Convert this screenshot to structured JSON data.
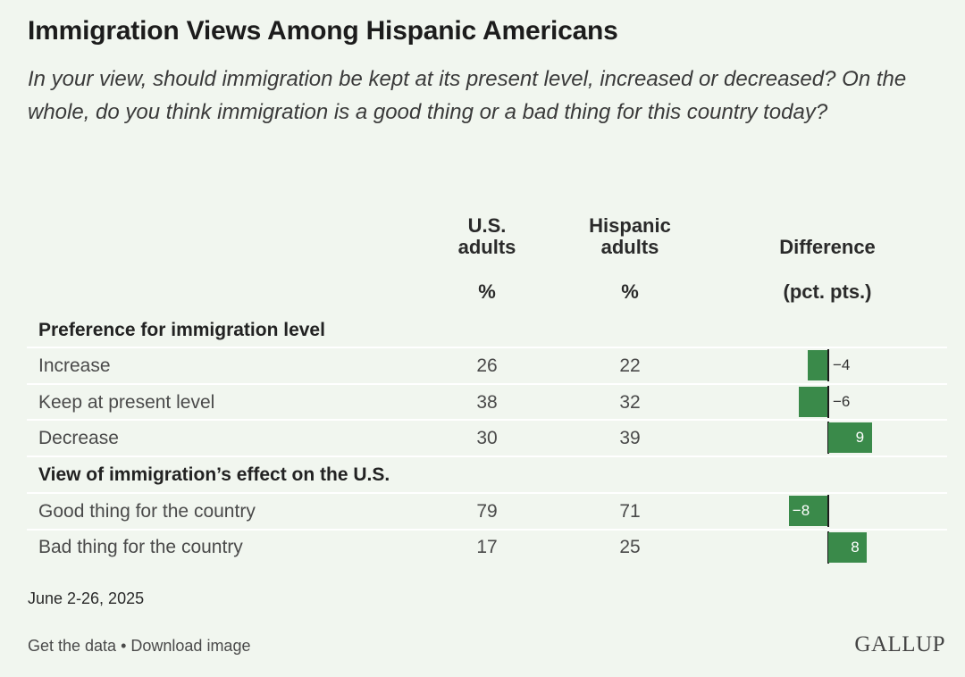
{
  "title": "Immigration Views Among Hispanic Americans",
  "subtitle": "In your view, should immigration be kept at its present level, increased or decreased? On the whole, do you think immigration is a good thing or a bad thing for this country today?",
  "columns": {
    "us": {
      "line1": "U.S.",
      "line2": "adults",
      "unit": "%"
    },
    "hispanic": {
      "line1": "Hispanic",
      "line2": "adults",
      "unit": "%"
    },
    "difference": {
      "line1": "Difference",
      "unit": "(pct. pts.)"
    }
  },
  "sections": [
    {
      "label": "Preference for immigration level"
    },
    {
      "label": "View of immigration’s effect on the U.S."
    }
  ],
  "rows": [
    {
      "label": "Increase",
      "us": "26",
      "hispanic": "22",
      "diff_label": "−4"
    },
    {
      "label": "Keep at present level",
      "us": "38",
      "hispanic": "32",
      "diff_label": "−6"
    },
    {
      "label": "Decrease",
      "us": "30",
      "hispanic": "39",
      "diff_label": "9"
    },
    {
      "label": "Good thing for the country",
      "us": "79",
      "hispanic": "71",
      "diff_label": "−8"
    },
    {
      "label": "Bad thing for the country",
      "us": "17",
      "hispanic": "25",
      "diff_label": "8"
    }
  ],
  "chart_data": {
    "type": "bar",
    "orientation": "horizontal",
    "categories": [
      "Increase",
      "Keep at present level",
      "Decrease",
      "Good thing for the country",
      "Bad thing for the country"
    ],
    "values": [
      -4,
      -6,
      9,
      -8,
      8
    ],
    "bar_color": "#3a8a4a"
  },
  "date": "June 2-26, 2025",
  "footer": {
    "get_data": "Get the data",
    "separator": " • ",
    "download": "Download image"
  },
  "logo": "GALLUP"
}
